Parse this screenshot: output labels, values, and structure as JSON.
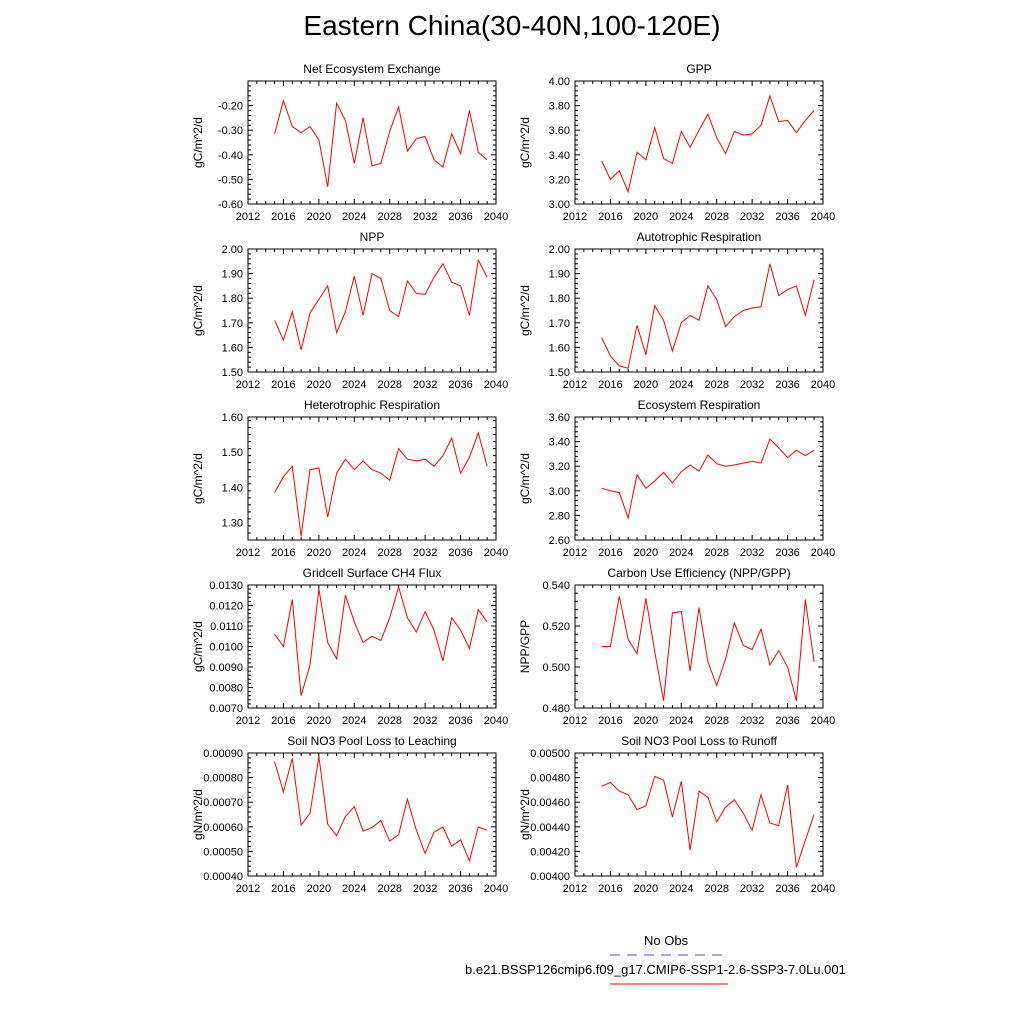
{
  "title": "Eastern China(30-40N,100-120E)",
  "legend": {
    "obs_label": "No Obs",
    "obs_color": "#5050d0",
    "run_label": "b.e21.BSSP126cmip6.f09_g17.CMIP6-SSP1-2.6-SSP3-7.0Lu.001",
    "run_color": "#ff0000"
  },
  "chart_data": [
    {
      "type": "line",
      "title": "Net Ecosystem Exchange",
      "ylabel": "gC/m^2/d",
      "xlim": [
        2012,
        2040
      ],
      "xticks": [
        2012,
        2016,
        2020,
        2024,
        2028,
        2032,
        2036,
        2040
      ],
      "ylim": [
        -0.6,
        -0.1
      ],
      "yticks": [
        "-0.60",
        "-0.50",
        "-0.40",
        "-0.30",
        "-0.20"
      ],
      "series": [
        {
          "x": [
            2015,
            2016,
            2017,
            2018,
            2019,
            2020,
            2021,
            2022,
            2023,
            2024,
            2025,
            2026,
            2027,
            2028,
            2029,
            2030,
            2031,
            2032,
            2033,
            2034,
            2035,
            2036,
            2037,
            2038,
            2039
          ],
          "values": [
            -0.315,
            -0.18,
            -0.285,
            -0.31,
            -0.285,
            -0.34,
            -0.53,
            -0.19,
            -0.26,
            -0.435,
            -0.25,
            -0.445,
            -0.435,
            -0.305,
            -0.205,
            -0.385,
            -0.335,
            -0.325,
            -0.42,
            -0.45,
            -0.315,
            -0.395,
            -0.22,
            -0.39,
            -0.42
          ]
        }
      ]
    },
    {
      "type": "line",
      "title": "GPP",
      "ylabel": "gC/m^2/d",
      "xlim": [
        2012,
        2040
      ],
      "xticks": [
        2012,
        2016,
        2020,
        2024,
        2028,
        2032,
        2036,
        2040
      ],
      "ylim": [
        3.0,
        4.0
      ],
      "yticks": [
        "3.00",
        "3.20",
        "3.40",
        "3.60",
        "3.80",
        "4.00"
      ],
      "series": [
        {
          "x": [
            2015,
            2016,
            2017,
            2018,
            2019,
            2020,
            2021,
            2022,
            2023,
            2024,
            2025,
            2026,
            2027,
            2028,
            2029,
            2030,
            2031,
            2032,
            2033,
            2034,
            2035,
            2036,
            2037,
            2038,
            2039
          ],
          "values": [
            3.35,
            3.2,
            3.27,
            3.1,
            3.42,
            3.36,
            3.62,
            3.37,
            3.33,
            3.59,
            3.46,
            3.6,
            3.73,
            3.54,
            3.41,
            3.59,
            3.56,
            3.57,
            3.64,
            3.88,
            3.67,
            3.68,
            3.58,
            3.68,
            3.76
          ]
        }
      ]
    },
    {
      "type": "line",
      "title": "NPP",
      "ylabel": "gC/m^2/d",
      "xlim": [
        2012,
        2040
      ],
      "xticks": [
        2012,
        2016,
        2020,
        2024,
        2028,
        2032,
        2036,
        2040
      ],
      "ylim": [
        1.5,
        2.0
      ],
      "yticks": [
        "1.50",
        "1.60",
        "1.70",
        "1.80",
        "1.90",
        "2.00"
      ],
      "series": [
        {
          "x": [
            2015,
            2016,
            2017,
            2018,
            2019,
            2020,
            2021,
            2022,
            2023,
            2024,
            2025,
            2026,
            2027,
            2028,
            2029,
            2030,
            2031,
            2032,
            2033,
            2034,
            2035,
            2036,
            2037,
            2038,
            2039
          ],
          "values": [
            1.71,
            1.63,
            1.745,
            1.59,
            1.74,
            1.795,
            1.85,
            1.66,
            1.745,
            1.89,
            1.73,
            1.9,
            1.88,
            1.75,
            1.725,
            1.87,
            1.82,
            1.815,
            1.885,
            1.94,
            1.865,
            1.85,
            1.73,
            1.955,
            1.885
          ]
        }
      ]
    },
    {
      "type": "line",
      "title": "Autotrophic Respiration",
      "ylabel": "gC/m^2/d",
      "xlim": [
        2012,
        2040
      ],
      "xticks": [
        2012,
        2016,
        2020,
        2024,
        2028,
        2032,
        2036,
        2040
      ],
      "ylim": [
        1.5,
        2.0
      ],
      "yticks": [
        "1.50",
        "1.60",
        "1.70",
        "1.80",
        "1.90",
        "2.00"
      ],
      "series": [
        {
          "x": [
            2015,
            2016,
            2017,
            2018,
            2019,
            2020,
            2021,
            2022,
            2023,
            2024,
            2025,
            2026,
            2027,
            2028,
            2029,
            2030,
            2031,
            2032,
            2033,
            2034,
            2035,
            2036,
            2037,
            2038,
            2039
          ],
          "values": [
            1.64,
            1.565,
            1.525,
            1.515,
            1.69,
            1.57,
            1.77,
            1.71,
            1.585,
            1.7,
            1.73,
            1.71,
            1.85,
            1.795,
            1.685,
            1.725,
            1.75,
            1.76,
            1.765,
            1.94,
            1.81,
            1.835,
            1.85,
            1.73,
            1.875
          ]
        }
      ]
    },
    {
      "type": "line",
      "title": "Heterotrophic Respiration",
      "ylabel": "gC/m^2/d",
      "xlim": [
        2012,
        2040
      ],
      "xticks": [
        2012,
        2016,
        2020,
        2024,
        2028,
        2032,
        2036,
        2040
      ],
      "ylim": [
        1.25,
        1.6
      ],
      "yticks": [
        "1.30",
        "1.40",
        "1.50",
        "1.60"
      ],
      "series": [
        {
          "x": [
            2015,
            2016,
            2017,
            2018,
            2019,
            2020,
            2021,
            2022,
            2023,
            2024,
            2025,
            2026,
            2027,
            2028,
            2029,
            2030,
            2031,
            2032,
            2033,
            2034,
            2035,
            2036,
            2037,
            2038,
            2039
          ],
          "values": [
            1.385,
            1.43,
            1.46,
            1.26,
            1.45,
            1.455,
            1.315,
            1.44,
            1.48,
            1.45,
            1.475,
            1.45,
            1.44,
            1.42,
            1.51,
            1.48,
            1.475,
            1.48,
            1.46,
            1.49,
            1.54,
            1.44,
            1.485,
            1.555,
            1.46
          ]
        }
      ]
    },
    {
      "type": "line",
      "title": "Ecosystem Respiration",
      "ylabel": "gC/m^2/d",
      "xlim": [
        2012,
        2040
      ],
      "xticks": [
        2012,
        2016,
        2020,
        2024,
        2028,
        2032,
        2036,
        2040
      ],
      "ylim": [
        2.6,
        3.6
      ],
      "yticks": [
        "2.60",
        "2.80",
        "3.00",
        "3.20",
        "3.40",
        "3.60"
      ],
      "series": [
        {
          "x": [
            2015,
            2016,
            2017,
            2018,
            2019,
            2020,
            2021,
            2022,
            2023,
            2024,
            2025,
            2026,
            2027,
            2028,
            2029,
            2030,
            2031,
            2032,
            2033,
            2034,
            2035,
            2036,
            2037,
            2038,
            2039
          ],
          "values": [
            3.02,
            3.0,
            2.985,
            2.78,
            3.13,
            3.02,
            3.08,
            3.15,
            3.065,
            3.155,
            3.21,
            3.16,
            3.29,
            3.22,
            3.2,
            3.21,
            3.225,
            3.24,
            3.225,
            3.42,
            3.35,
            3.27,
            3.33,
            3.285,
            3.33
          ]
        }
      ]
    },
    {
      "type": "line",
      "title": "Gridcell Surface CH4 Flux",
      "ylabel": "gC/m^2/d",
      "xlim": [
        2012,
        2040
      ],
      "xticks": [
        2012,
        2016,
        2020,
        2024,
        2028,
        2032,
        2036,
        2040
      ],
      "ylim": [
        0.007,
        0.013
      ],
      "yticks": [
        "0.0070",
        "0.0080",
        "0.0090",
        "0.0100",
        "0.0110",
        "0.0120",
        "0.0130"
      ],
      "series": [
        {
          "x": [
            2015,
            2016,
            2017,
            2018,
            2019,
            2020,
            2021,
            2022,
            2023,
            2024,
            2025,
            2026,
            2027,
            2028,
            2029,
            2030,
            2031,
            2032,
            2033,
            2034,
            2035,
            2036,
            2037,
            2038,
            2039
          ],
          "values": [
            0.0106,
            0.01,
            0.0123,
            0.0076,
            0.0091,
            0.0128,
            0.0102,
            0.0094,
            0.0125,
            0.0112,
            0.0102,
            0.0105,
            0.0103,
            0.0114,
            0.0129,
            0.0114,
            0.0107,
            0.0117,
            0.0108,
            0.0093,
            0.0114,
            0.0108,
            0.0099,
            0.0118,
            0.0112
          ]
        }
      ]
    },
    {
      "type": "line",
      "title": "Carbon Use Efficiency (NPP/GPP)",
      "ylabel": "NPP/GPP",
      "xlim": [
        2012,
        2040
      ],
      "xticks": [
        2012,
        2016,
        2020,
        2024,
        2028,
        2032,
        2036,
        2040
      ],
      "ylim": [
        0.48,
        0.54
      ],
      "yticks": [
        "0.480",
        "0.500",
        "0.520",
        "0.540"
      ],
      "series": [
        {
          "x": [
            2015,
            2016,
            2017,
            2018,
            2019,
            2020,
            2021,
            2022,
            2023,
            2024,
            2025,
            2026,
            2027,
            2028,
            2029,
            2030,
            2031,
            2032,
            2033,
            2034,
            2035,
            2036,
            2037,
            2038,
            2039
          ],
          "values": [
            0.51,
            0.51,
            0.5345,
            0.5135,
            0.5065,
            0.5335,
            0.5075,
            0.4835,
            0.5265,
            0.527,
            0.498,
            0.529,
            0.5025,
            0.491,
            0.504,
            0.5215,
            0.5105,
            0.5085,
            0.5185,
            0.501,
            0.508,
            0.5,
            0.4835,
            0.533,
            0.5025
          ]
        }
      ]
    },
    {
      "type": "line",
      "title": "Soil NO3 Pool Loss to Leaching",
      "ylabel": "gN/m^2/d",
      "xlim": [
        2012,
        2040
      ],
      "xticks": [
        2012,
        2016,
        2020,
        2024,
        2028,
        2032,
        2036,
        2040
      ],
      "ylim": [
        0.0004,
        0.0009
      ],
      "yticks": [
        "0.00040",
        "0.00050",
        "0.00060",
        "0.00070",
        "0.00080",
        "0.00090"
      ],
      "series": [
        {
          "x": [
            2015,
            2016,
            2017,
            2018,
            2019,
            2020,
            2021,
            2022,
            2023,
            2024,
            2025,
            2026,
            2027,
            2028,
            2029,
            2030,
            2031,
            2032,
            2033,
            2034,
            2035,
            2036,
            2037,
            2038,
            2039
          ],
          "values": [
            0.000865,
            0.000742,
            0.000878,
            0.000607,
            0.000655,
            0.000885,
            0.000611,
            0.000564,
            0.000642,
            0.000682,
            0.000582,
            0.000597,
            0.000625,
            0.000542,
            0.000568,
            0.000712,
            0.000587,
            0.000492,
            0.000578,
            0.000599,
            0.000521,
            0.000547,
            0.000462,
            0.000599,
            0.000586
          ]
        }
      ]
    },
    {
      "type": "line",
      "title": "Soil NO3 Pool Loss to Runoff",
      "ylabel": "gN/m^2/d",
      "xlim": [
        2012,
        2040
      ],
      "xticks": [
        2012,
        2016,
        2020,
        2024,
        2028,
        2032,
        2036,
        2040
      ],
      "ylim": [
        0.004,
        0.005
      ],
      "yticks": [
        "0.00400",
        "0.00420",
        "0.00440",
        "0.00460",
        "0.00480",
        "0.00500"
      ],
      "series": [
        {
          "x": [
            2015,
            2016,
            2017,
            2018,
            2019,
            2020,
            2021,
            2022,
            2023,
            2024,
            2025,
            2026,
            2027,
            2028,
            2029,
            2030,
            2031,
            2032,
            2033,
            2034,
            2035,
            2036,
            2037,
            2038,
            2039
          ],
          "values": [
            0.00473,
            0.00476,
            0.00469,
            0.00466,
            0.00454,
            0.00457,
            0.00481,
            0.00478,
            0.00448,
            0.00477,
            0.00421,
            0.00469,
            0.00464,
            0.00444,
            0.00456,
            0.00462,
            0.00451,
            0.00437,
            0.00466,
            0.00443,
            0.00441,
            0.00474,
            0.00407,
            0.00429,
            0.0045
          ]
        }
      ]
    }
  ]
}
